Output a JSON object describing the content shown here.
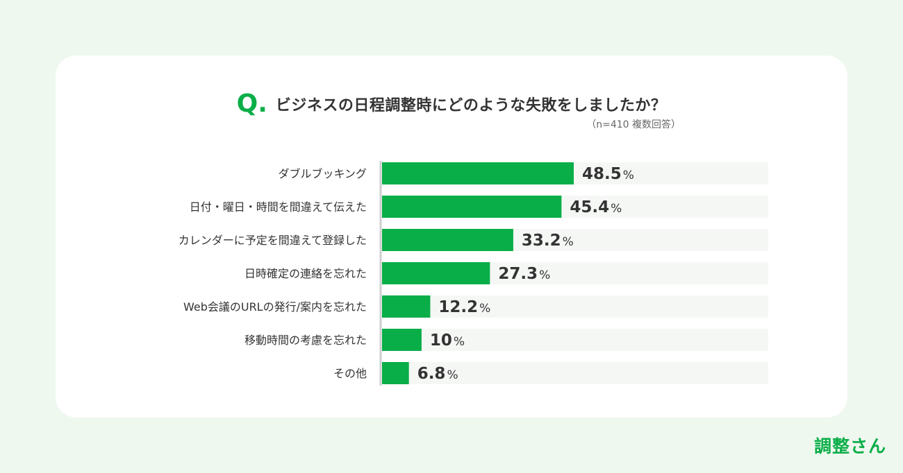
{
  "title": {
    "q_mark": "Q.",
    "question": "ビジネスの日程調整時にどのような失敗をしましたか？",
    "sample": "（n=410 複数回答）"
  },
  "brand": "調整さん",
  "colors": {
    "accent": "#0aae48",
    "track": "#f5f7f5",
    "background": "#eff8ef"
  },
  "chart_data": {
    "type": "bar",
    "orientation": "horizontal",
    "title": "ビジネスの日程調整時にどのような失敗をしましたか？",
    "subtitle": "（n=410 複数回答）",
    "unit": "%",
    "categories": [
      "ダブルブッキング",
      "日付・曜日・時間を間違えて伝えた",
      "カレンダーに予定を間違えて登録した",
      "日時確定の連絡を忘れた",
      "Web会議のURLの発行/案内を忘れた",
      "移動時間の考慮を忘れた",
      "その他"
    ],
    "values": [
      48.5,
      45.4,
      33.2,
      27.3,
      12.2,
      10,
      6.8
    ],
    "labels": [
      "48.5",
      "45.4",
      "33.2",
      "27.3",
      "12.2",
      "10",
      "6.8"
    ],
    "xlim": [
      0,
      100
    ],
    "grid": false,
    "legend": "none"
  }
}
